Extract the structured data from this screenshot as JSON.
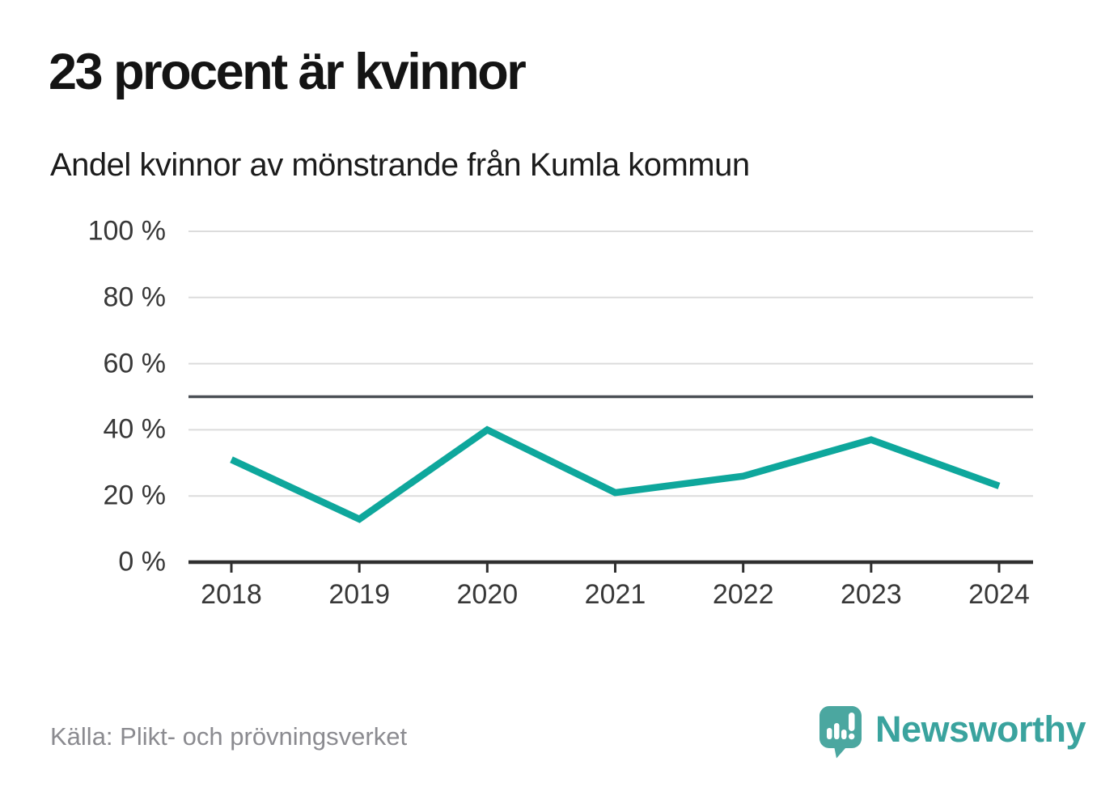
{
  "header": {
    "title": "23 procent är kvinnor",
    "subtitle": "Andel kvinnor av mönstrande från Kumla kommun"
  },
  "chart_data": {
    "type": "line",
    "title": "23 procent är kvinnor",
    "subtitle": "Andel kvinnor av mönstrande från Kumla kommun",
    "categories": [
      "2018",
      "2019",
      "2020",
      "2021",
      "2022",
      "2023",
      "2024"
    ],
    "series": [
      {
        "name": "Andel kvinnor av mönstrande",
        "values": [
          31,
          13,
          40,
          21,
          26,
          37,
          23
        ]
      }
    ],
    "unit": "%",
    "ylim": [
      0,
      100
    ],
    "yticks": [
      0,
      20,
      40,
      60,
      80,
      100
    ],
    "ytick_labels": [
      "0 %",
      "20 %",
      "40 %",
      "60 %",
      "80 %",
      "100 %"
    ],
    "reference_line": 50,
    "grid": true,
    "legend": "none",
    "line_color": "#0ea79c"
  },
  "footer": {
    "source": "Källa: Plikt- och prövningsverket",
    "brand": "Newsworthy",
    "brand_color": "#3aa39e",
    "logo_color": "#4ba7a0"
  }
}
